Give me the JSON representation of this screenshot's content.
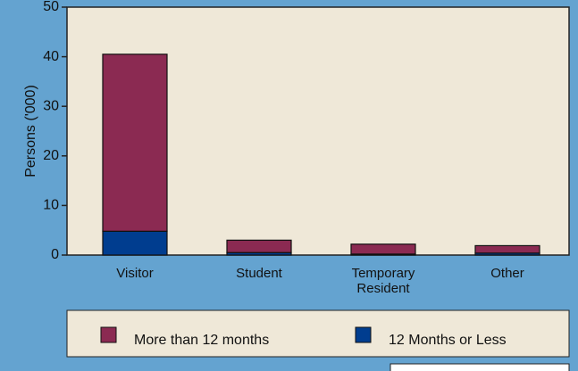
{
  "chart_data": {
    "type": "bar",
    "stacked": true,
    "y_label": "Persons ('000)",
    "categories": [
      "Visitor",
      "Student",
      "Temporary Resident",
      "Other"
    ],
    "series": [
      {
        "name": "More than 12 months",
        "color": "#8b2a52",
        "values": [
          35.7,
          2.5,
          2.0,
          1.5
        ]
      },
      {
        "name": "12 Months or Less",
        "color": "#003d8f",
        "values": [
          4.8,
          0.5,
          0.2,
          0.4
        ]
      }
    ],
    "ylim": [
      0,
      50
    ],
    "yticks": [
      0,
      10,
      20,
      30,
      40,
      50
    ]
  }
}
